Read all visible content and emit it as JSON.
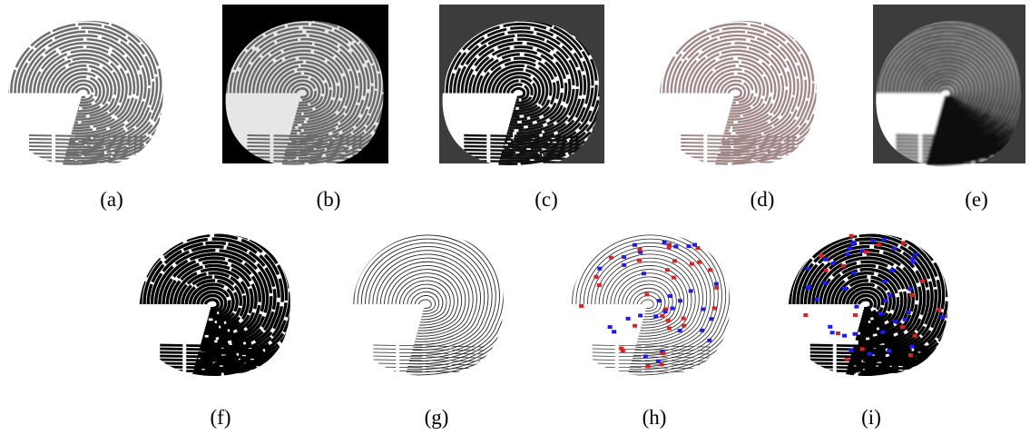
{
  "labels": [
    "(a)",
    "(b)",
    "(c)",
    "(d)",
    "(e)",
    "(f)",
    "(g)",
    "(h)",
    "(i)"
  ]
}
